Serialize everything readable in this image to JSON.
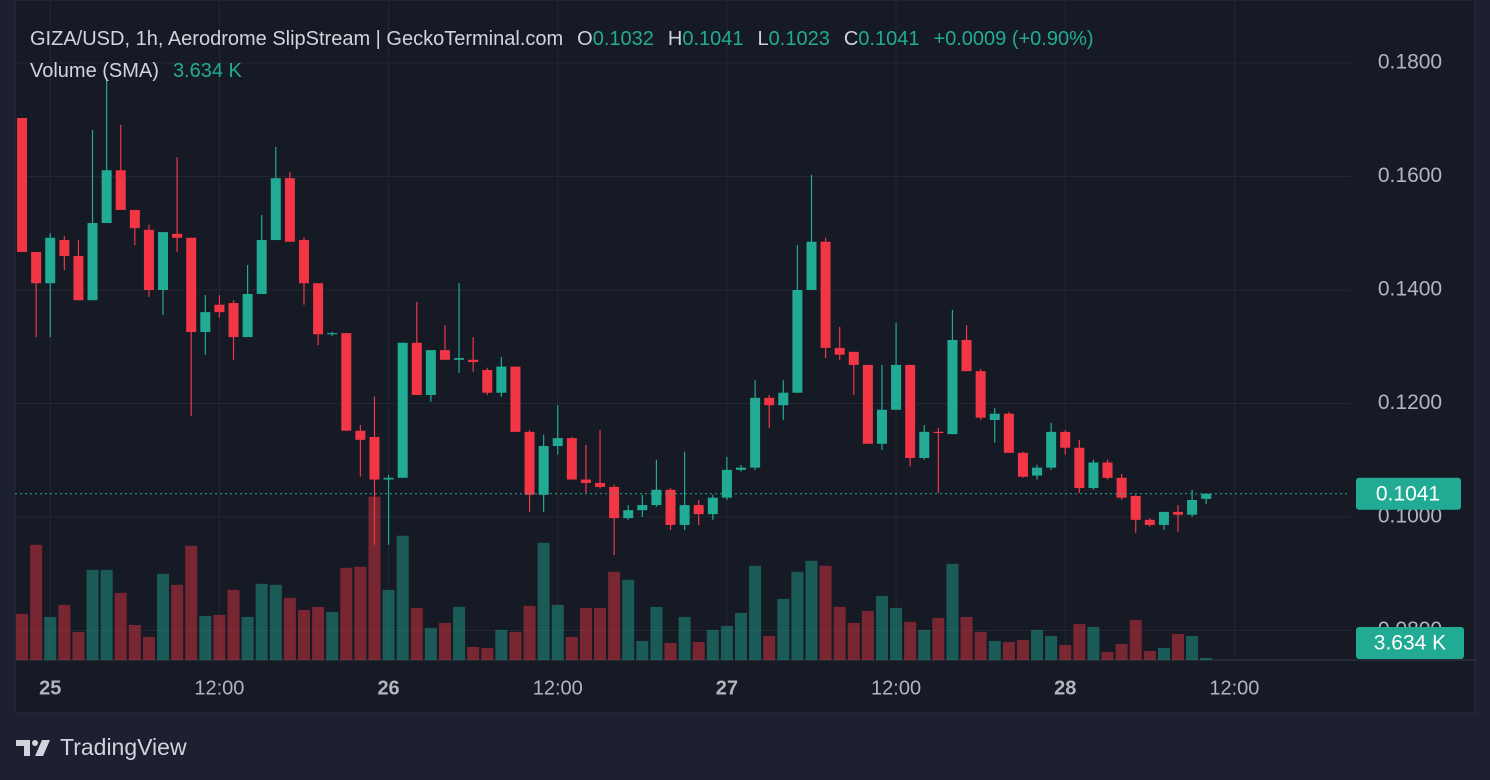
{
  "chart_data": {
    "type": "candlestick",
    "title": "GIZA/USD, 1h, Aerodrome SlipStream | GeckoTerminal.com",
    "ohlc_legend": [
      {
        "key": "O",
        "value": 0.1032
      },
      {
        "key": "H",
        "value": 0.1041
      },
      {
        "key": "L",
        "value": 0.1023
      },
      {
        "key": "C",
        "value": 0.1041
      }
    ],
    "change": "+0.0009 (+0.90%)",
    "volume_title": "Volume (SMA)",
    "volume_label": "3.634 K",
    "brand": "TradingView",
    "up_color": "#22ab94",
    "down_color": "#f23645",
    "grid": true,
    "open": [
      0.1703,
      0.1467,
      0.1412,
      0.1488,
      0.146,
      0.1382,
      0.1518,
      0.1611,
      0.1541,
      0.1506,
      0.14,
      0.1499,
      0.1492,
      0.1326,
      0.1374,
      0.1377,
      0.1317,
      0.1393,
      0.1488,
      0.1597,
      0.1488,
      0.1412,
      0.1322,
      0.1324,
      0.1152,
      0.1141,
      0.1066,
      0.1069,
      0.1307,
      0.1215,
      0.1294,
      0.1277,
      0.1277,
      0.1259,
      0.1219,
      0.1265,
      0.115,
      0.1039,
      0.1125,
      0.1139,
      0.1066,
      0.106,
      0.1053,
      0.0998,
      0.1012,
      0.1021,
      0.1048,
      0.0986,
      0.1021,
      0.1005,
      0.1034,
      0.1083,
      0.1087,
      0.121,
      0.1197,
      0.1219,
      0.14,
      0.1485,
      0.1298,
      0.1291,
      0.1268,
      0.1129,
      0.1189,
      0.1268,
      0.1104,
      0.115,
      0.1146,
      0.1312,
      0.1257,
      0.1171,
      0.1182,
      0.1113,
      0.1073,
      0.1087,
      0.115,
      0.1122,
      0.1051,
      0.1096,
      0.1069,
      0.1037,
      0.0995,
      0.0986,
      0.1009,
      0.1004,
      0.1032
    ],
    "high": [
      0.1703,
      0.1467,
      0.15,
      0.1495,
      0.1488,
      0.1682,
      0.1774,
      0.1691,
      0.1541,
      0.1515,
      0.1502,
      0.1634,
      0.1492,
      0.1391,
      0.1391,
      0.1382,
      0.1444,
      0.1532,
      0.1652,
      0.1608,
      0.1493,
      0.1412,
      0.1326,
      0.1324,
      0.1162,
      0.1212,
      0.1074,
      0.1307,
      0.1379,
      0.1294,
      0.1338,
      0.1412,
      0.1317,
      0.1263,
      0.1282,
      0.1265,
      0.1153,
      0.1145,
      0.1197,
      0.1141,
      0.1127,
      0.1153,
      0.1057,
      0.1021,
      0.1039,
      0.1101,
      0.1051,
      0.1115,
      0.103,
      0.1039,
      0.1106,
      0.1092,
      0.1241,
      0.1215,
      0.1241,
      0.1479,
      0.1603,
      0.1492,
      0.1335,
      0.1291,
      0.1268,
      0.1268,
      0.1342,
      0.1268,
      0.1162,
      0.1157,
      0.1365,
      0.1338,
      0.1261,
      0.1192,
      0.1185,
      0.1115,
      0.1092,
      0.1166,
      0.1153,
      0.1136,
      0.1101,
      0.1101,
      0.1076,
      0.1039,
      0.0998,
      0.1009,
      0.1021,
      0.1048,
      0.1041
    ],
    "low": [
      0.1467,
      0.1317,
      0.1317,
      0.1435,
      0.1382,
      0.1382,
      0.1518,
      0.1541,
      0.1479,
      0.1388,
      0.1356,
      0.1467,
      0.1178,
      0.1286,
      0.1351,
      0.1277,
      0.1317,
      0.1393,
      0.1488,
      0.1485,
      0.1374,
      0.1303,
      0.1319,
      0.1152,
      0.1071,
      0.0951,
      0.0951,
      0.1069,
      0.1215,
      0.1203,
      0.1277,
      0.1254,
      0.1256,
      0.1215,
      0.1212,
      0.115,
      0.1009,
      0.1009,
      0.111,
      0.1066,
      0.1042,
      0.105,
      0.0933,
      0.0995,
      0.1,
      0.1018,
      0.0977,
      0.0977,
      0.0986,
      0.0995,
      0.103,
      0.108,
      0.1083,
      0.1157,
      0.1171,
      0.1219,
      0.14,
      0.128,
      0.1277,
      0.1215,
      0.1129,
      0.1118,
      0.1189,
      0.1089,
      0.1101,
      0.1042,
      0.1146,
      0.1257,
      0.1171,
      0.1131,
      0.1113,
      0.1069,
      0.1066,
      0.1083,
      0.111,
      0.1042,
      0.1048,
      0.1066,
      0.103,
      0.0972,
      0.0983,
      0.0977,
      0.0974,
      0.1,
      0.1023
    ],
    "close": [
      0.1467,
      0.1412,
      0.1492,
      0.146,
      0.1382,
      0.1518,
      0.1611,
      0.1541,
      0.1509,
      0.14,
      0.1502,
      0.1492,
      0.1326,
      0.1361,
      0.1361,
      0.1317,
      0.1393,
      0.1488,
      0.1597,
      0.1485,
      0.1412,
      0.1322,
      0.1324,
      0.1152,
      0.1136,
      0.1066,
      0.1069,
      0.1307,
      0.1215,
      0.1294,
      0.1277,
      0.128,
      0.1273,
      0.1219,
      0.1265,
      0.115,
      0.1039,
      0.1125,
      0.1139,
      0.1066,
      0.106,
      0.1053,
      0.0998,
      0.1012,
      0.1021,
      0.1048,
      0.0986,
      0.1021,
      0.1005,
      0.1034,
      0.1083,
      0.1087,
      0.121,
      0.1197,
      0.1219,
      0.14,
      0.1485,
      0.1298,
      0.1286,
      0.1268,
      0.1129,
      0.1189,
      0.1268,
      0.1104,
      0.115,
      0.1148,
      0.1312,
      0.1257,
      0.1175,
      0.1182,
      0.1113,
      0.1071,
      0.1087,
      0.115,
      0.1122,
      0.1051,
      0.1096,
      0.1069,
      0.1034,
      0.0995,
      0.0986,
      0.1009,
      0.1004,
      0.103,
      0.1041
    ],
    "volume": [
      82.8,
      207,
      77.4,
      99,
      50.4,
      162,
      162,
      120.6,
      63,
      41.4,
      154.8,
      135,
      205.2,
      79.2,
      81,
      126,
      77.4,
      136.8,
      135,
      111.6,
      90,
      95.4,
      86.4,
      165.6,
      167.4,
      293.4,
      126,
      223.2,
      93.6,
      57.6,
      66.6,
      95.4,
      23.4,
      21.6,
      54,
      50.4,
      97.2,
      210.6,
      99,
      41.4,
      93.6,
      93.6,
      158.4,
      144,
      34.2,
      95.4,
      30.6,
      77.4,
      32.4,
      54,
      61.2,
      84.6,
      169.2,
      43.2,
      109.8,
      158.4,
      178.2,
      169.2,
      95.4,
      66.6,
      88.2,
      115.2,
      93.6,
      68.4,
      54,
      75.6,
      172.8,
      77.4,
      50.4,
      34.2,
      32.4,
      36,
      54,
      43.2,
      27,
      64.8,
      59.4,
      14.4,
      28.8,
      72,
      16.2,
      21.6,
      46.8,
      43.2,
      3.634
    ],
    "xlim": [
      -0.5,
      94.2
    ],
    "xticks": [
      {
        "value": 2,
        "label": "25"
      },
      {
        "value": 14,
        "label": "12:00"
      },
      {
        "value": 26,
        "label": "26"
      },
      {
        "value": 38,
        "label": "12:00"
      },
      {
        "value": 50,
        "label": "27"
      },
      {
        "value": 62,
        "label": "12:00"
      },
      {
        "value": 74,
        "label": "28"
      },
      {
        "value": 86,
        "label": "12:00"
      }
    ],
    "ylim": [
      0.0748,
      0.1911
    ],
    "yticks": [
      {
        "value": 0.18,
        "label": "0.1800"
      },
      {
        "value": 0.16,
        "label": "0.1600"
      },
      {
        "value": 0.14,
        "label": "0.1400"
      },
      {
        "value": 0.12,
        "label": "0.1200"
      },
      {
        "value": 0.1,
        "label": "0.1000"
      },
      {
        "value": 0.08,
        "label": "0.0800"
      }
    ],
    "vlim": [
      0,
      300
    ],
    "last_price": 0.1041
  }
}
